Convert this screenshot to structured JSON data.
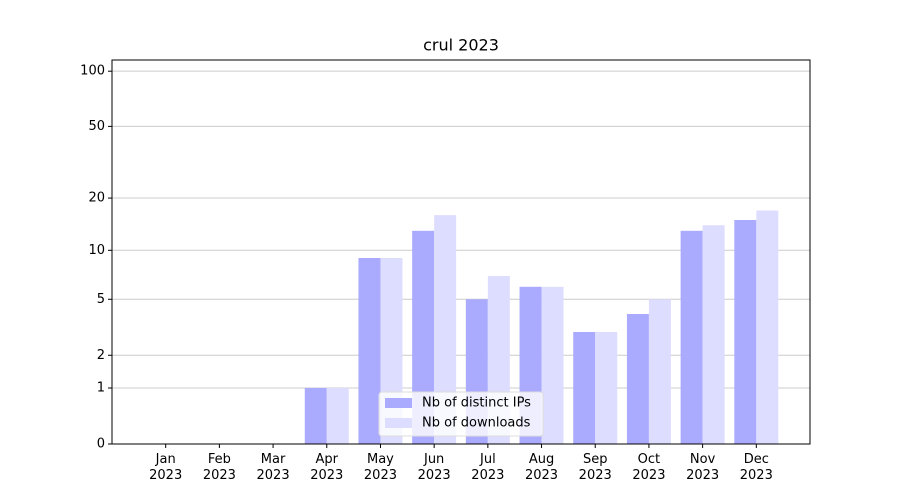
{
  "chart_data": {
    "type": "bar",
    "title": "crul 2023",
    "categories": [
      "Jan\n2023",
      "Feb\n2023",
      "Mar\n2023",
      "Apr\n2023",
      "May\n2023",
      "Jun\n2023",
      "Jul\n2023",
      "Aug\n2023",
      "Sep\n2023",
      "Oct\n2023",
      "Nov\n2023",
      "Dec\n2023"
    ],
    "series": [
      {
        "name": "Nb of distinct IPs",
        "color": "#aaaaff",
        "values": [
          0,
          0,
          0,
          1,
          9,
          13,
          5,
          6,
          3,
          4,
          13,
          15
        ]
      },
      {
        "name": "Nb of downloads",
        "color": "#ddddff",
        "values": [
          0,
          0,
          0,
          1,
          9,
          16,
          7,
          6,
          3,
          5,
          14,
          17
        ]
      }
    ],
    "yscale": "log1p",
    "ylim": [
      0,
      115
    ],
    "yticks": [
      0,
      1,
      2,
      5,
      10,
      20,
      50,
      100
    ],
    "grid": true,
    "legend": "lower center"
  }
}
